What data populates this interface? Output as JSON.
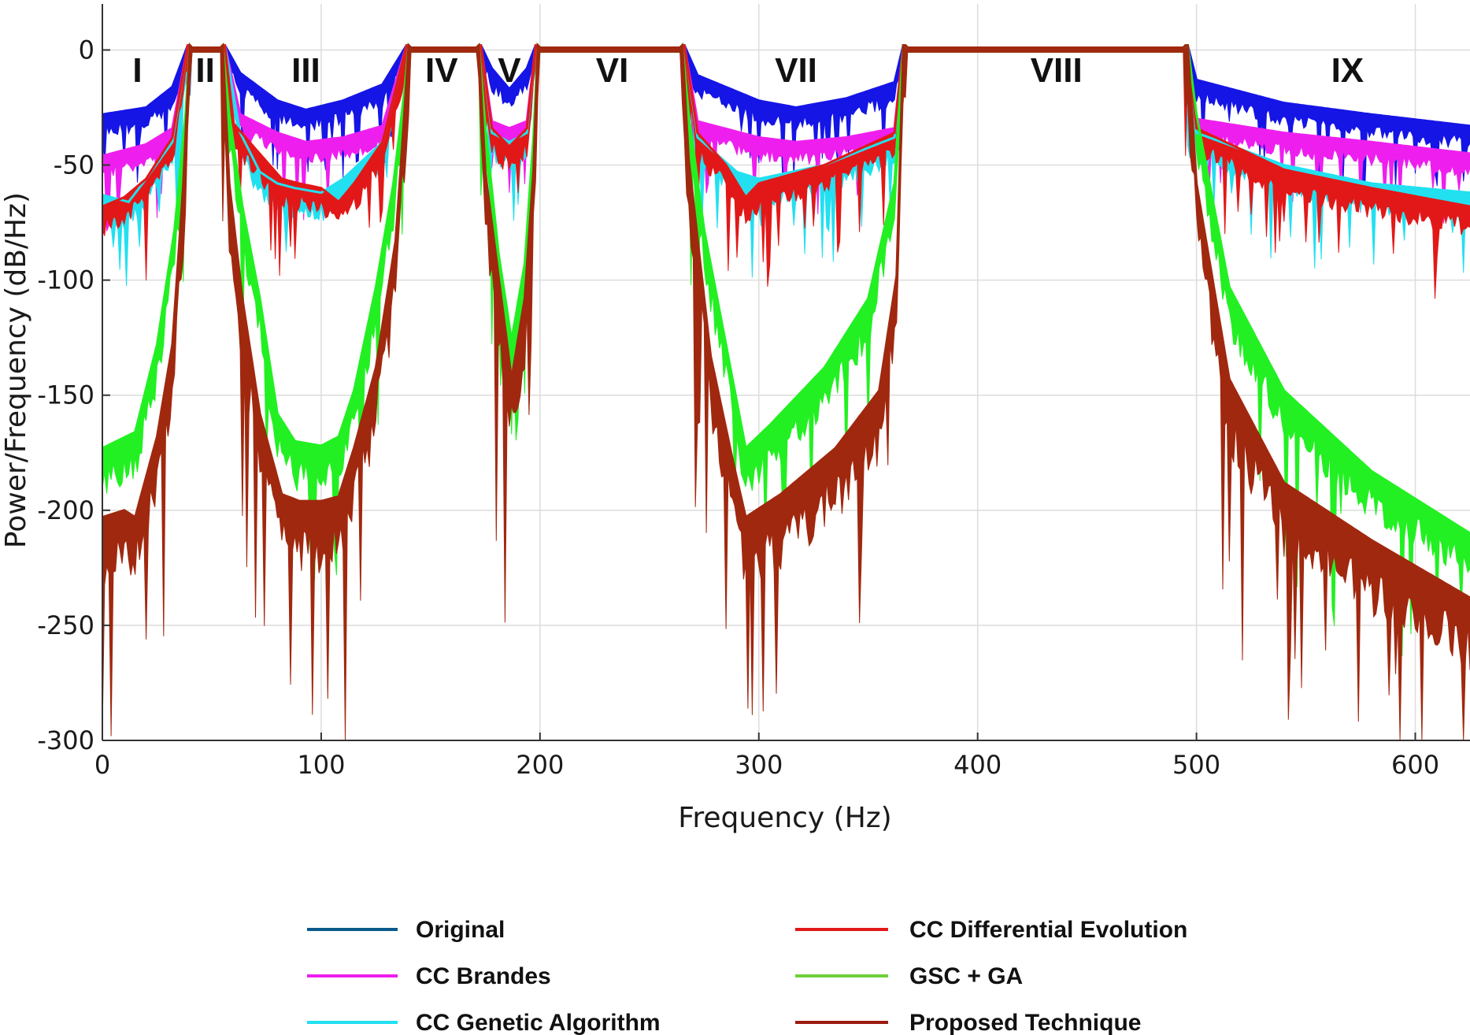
{
  "chart_data": {
    "type": "line",
    "xlabel": "Frequency (Hz)",
    "ylabel": "Power/Frequency (dB/Hz)",
    "xlim": [
      0,
      625
    ],
    "ylim": [
      -300,
      20
    ],
    "xticks": [
      0,
      100,
      200,
      300,
      400,
      500,
      600
    ],
    "yticks": [
      0,
      -50,
      -100,
      -150,
      -200,
      -250,
      -300
    ],
    "grid": true,
    "legend_position": "bottom",
    "regions": [
      {
        "label": "I",
        "x": 16
      },
      {
        "label": "II",
        "x": 47
      },
      {
        "label": "III",
        "x": 93
      },
      {
        "label": "IV",
        "x": 155
      },
      {
        "label": "V",
        "x": 186
      },
      {
        "label": "VI",
        "x": 233
      },
      {
        "label": "VII",
        "x": 317
      },
      {
        "label": "VIII",
        "x": 436
      },
      {
        "label": "IX",
        "x": 569
      }
    ],
    "passbands": [
      [
        39,
        56
      ],
      [
        139,
        173
      ],
      [
        198,
        266
      ],
      [
        366,
        496
      ]
    ],
    "series": [
      {
        "name": "Original",
        "legend_color": "#0a5a8a",
        "color": "#1515e6",
        "points": [
          [
            0,
            -30
          ],
          [
            20,
            -27
          ],
          [
            32,
            -18
          ],
          [
            39,
            0
          ],
          [
            56,
            0
          ],
          [
            63,
            -12
          ],
          [
            80,
            -24
          ],
          [
            93,
            -28
          ],
          [
            110,
            -24
          ],
          [
            128,
            -17
          ],
          [
            139,
            0
          ],
          [
            173,
            0
          ],
          [
            178,
            -10
          ],
          [
            186,
            -19
          ],
          [
            194,
            -10
          ],
          [
            198,
            0
          ],
          [
            266,
            0
          ],
          [
            272,
            -13
          ],
          [
            300,
            -24
          ],
          [
            317,
            -27
          ],
          [
            340,
            -23
          ],
          [
            362,
            -16
          ],
          [
            366,
            0
          ],
          [
            496,
            0
          ],
          [
            500,
            -15
          ],
          [
            540,
            -25
          ],
          [
            580,
            -30
          ],
          [
            625,
            -35
          ]
        ]
      },
      {
        "name": "CC Brandes",
        "legend_color": "#ee1fee",
        "color": "#ee1fee",
        "points": [
          [
            0,
            -48
          ],
          [
            20,
            -43
          ],
          [
            32,
            -36
          ],
          [
            39,
            0
          ],
          [
            56,
            0
          ],
          [
            63,
            -30
          ],
          [
            80,
            -38
          ],
          [
            93,
            -42
          ],
          [
            110,
            -40
          ],
          [
            128,
            -35
          ],
          [
            139,
            0
          ],
          [
            173,
            0
          ],
          [
            178,
            -33
          ],
          [
            186,
            -36
          ],
          [
            194,
            -33
          ],
          [
            198,
            0
          ],
          [
            266,
            0
          ],
          [
            272,
            -33
          ],
          [
            300,
            -40
          ],
          [
            317,
            -42
          ],
          [
            340,
            -40
          ],
          [
            362,
            -36
          ],
          [
            366,
            0
          ],
          [
            496,
            0
          ],
          [
            500,
            -32
          ],
          [
            540,
            -38
          ],
          [
            580,
            -42
          ],
          [
            625,
            -47
          ]
        ]
      },
      {
        "name": "CC Genetic Algorithm",
        "legend_color": "#22e0f0",
        "color": "#22e0f0",
        "points": [
          [
            0,
            -65
          ],
          [
            12,
            -68
          ],
          [
            20,
            -58
          ],
          [
            32,
            -42
          ],
          [
            39,
            0
          ],
          [
            56,
            0
          ],
          [
            63,
            -38
          ],
          [
            72,
            -55
          ],
          [
            80,
            -60
          ],
          [
            88,
            -62
          ],
          [
            100,
            -64
          ],
          [
            110,
            -58
          ],
          [
            128,
            -42
          ],
          [
            139,
            0
          ],
          [
            173,
            0
          ],
          [
            178,
            -38
          ],
          [
            186,
            -42
          ],
          [
            194,
            -38
          ],
          [
            198,
            0
          ],
          [
            266,
            0
          ],
          [
            272,
            -40
          ],
          [
            290,
            -55
          ],
          [
            300,
            -58
          ],
          [
            330,
            -52
          ],
          [
            362,
            -40
          ],
          [
            366,
            0
          ],
          [
            496,
            0
          ],
          [
            500,
            -38
          ],
          [
            540,
            -52
          ],
          [
            580,
            -60
          ],
          [
            625,
            -64
          ]
        ]
      },
      {
        "name": "CC Differential Evolution",
        "legend_color": "#e21818",
        "color": "#e21818",
        "points": [
          [
            0,
            -70
          ],
          [
            10,
            -66
          ],
          [
            20,
            -58
          ],
          [
            32,
            -40
          ],
          [
            39,
            0
          ],
          [
            56,
            0
          ],
          [
            60,
            -34
          ],
          [
            70,
            -45
          ],
          [
            82,
            -58
          ],
          [
            90,
            -60
          ],
          [
            100,
            -62
          ],
          [
            108,
            -68
          ],
          [
            115,
            -60
          ],
          [
            128,
            -42
          ],
          [
            139,
            0
          ],
          [
            173,
            0
          ],
          [
            178,
            -36
          ],
          [
            186,
            -44
          ],
          [
            194,
            -36
          ],
          [
            198,
            0
          ],
          [
            266,
            0
          ],
          [
            272,
            -38
          ],
          [
            285,
            -52
          ],
          [
            294,
            -66
          ],
          [
            300,
            -60
          ],
          [
            330,
            -52
          ],
          [
            362,
            -38
          ],
          [
            366,
            0
          ],
          [
            496,
            0
          ],
          [
            500,
            -36
          ],
          [
            540,
            -54
          ],
          [
            580,
            -62
          ],
          [
            625,
            -70
          ]
        ]
      },
      {
        "name": "GSC + GA",
        "legend_color": "#6fd03a",
        "color": "#22f022",
        "points": [
          [
            0,
            -175
          ],
          [
            15,
            -168
          ],
          [
            25,
            -130
          ],
          [
            33,
            -80
          ],
          [
            38,
            -30
          ],
          [
            40,
            0
          ],
          [
            55,
            0
          ],
          [
            58,
            -30
          ],
          [
            64,
            -70
          ],
          [
            72,
            -110
          ],
          [
            80,
            -160
          ],
          [
            88,
            -172
          ],
          [
            100,
            -174
          ],
          [
            108,
            -170
          ],
          [
            115,
            -150
          ],
          [
            125,
            -105
          ],
          [
            133,
            -60
          ],
          [
            138,
            -20
          ],
          [
            140,
            0
          ],
          [
            172,
            0
          ],
          [
            175,
            -35
          ],
          [
            181,
            -90
          ],
          [
            187,
            -128
          ],
          [
            193,
            -95
          ],
          [
            197,
            -40
          ],
          [
            199,
            0
          ],
          [
            265,
            0
          ],
          [
            268,
            -30
          ],
          [
            275,
            -80
          ],
          [
            285,
            -130
          ],
          [
            294,
            -175
          ],
          [
            305,
            -165
          ],
          [
            330,
            -140
          ],
          [
            350,
            -110
          ],
          [
            362,
            -60
          ],
          [
            366,
            0
          ],
          [
            496,
            0
          ],
          [
            500,
            -30
          ],
          [
            515,
            -105
          ],
          [
            540,
            -150
          ],
          [
            580,
            -185
          ],
          [
            625,
            -212
          ]
        ]
      },
      {
        "name": "Proposed Technique",
        "legend_color": "#9c1b10",
        "color": "#a0280f",
        "points": [
          [
            0,
            -205
          ],
          [
            10,
            -202
          ],
          [
            15,
            -205
          ],
          [
            25,
            -170
          ],
          [
            32,
            -130
          ],
          [
            37,
            -60
          ],
          [
            40,
            0
          ],
          [
            55,
            0
          ],
          [
            58,
            -60
          ],
          [
            64,
            -110
          ],
          [
            72,
            -160
          ],
          [
            82,
            -195
          ],
          [
            90,
            -198
          ],
          [
            100,
            -198
          ],
          [
            108,
            -196
          ],
          [
            115,
            -175
          ],
          [
            125,
            -140
          ],
          [
            134,
            -85
          ],
          [
            138,
            -30
          ],
          [
            140,
            0
          ],
          [
            172,
            0
          ],
          [
            175,
            -55
          ],
          [
            181,
            -100
          ],
          [
            187,
            -145
          ],
          [
            193,
            -110
          ],
          [
            197,
            -55
          ],
          [
            199,
            0
          ],
          [
            265,
            0
          ],
          [
            268,
            -50
          ],
          [
            278,
            -135
          ],
          [
            288,
            -180
          ],
          [
            294,
            -205
          ],
          [
            310,
            -195
          ],
          [
            335,
            -175
          ],
          [
            355,
            -150
          ],
          [
            363,
            -100
          ],
          [
            366,
            0
          ],
          [
            496,
            0
          ],
          [
            500,
            -60
          ],
          [
            515,
            -145
          ],
          [
            540,
            -190
          ],
          [
            580,
            -215
          ],
          [
            625,
            -240
          ]
        ]
      }
    ]
  }
}
